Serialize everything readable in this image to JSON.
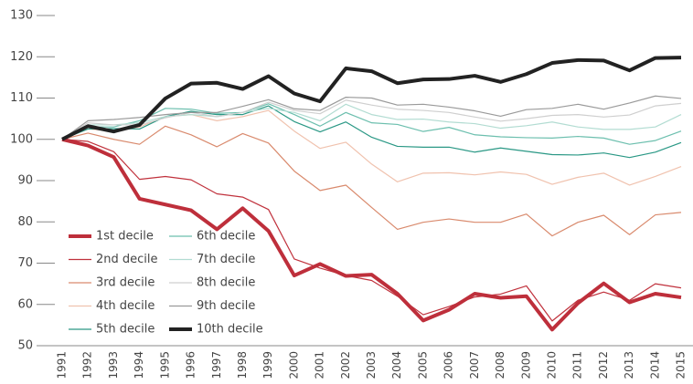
{
  "chart_data": {
    "type": "line",
    "categories": [
      "1991",
      "1992",
      "1993",
      "1994",
      "1995",
      "1996",
      "1997",
      "1998",
      "1999",
      "2000",
      "2001",
      "2002",
      "2003",
      "2004",
      "2005",
      "2006",
      "2007",
      "2008",
      "2009",
      "2010",
      "2011",
      "2012",
      "2013",
      "2014",
      "2015"
    ],
    "ylim": [
      50,
      130
    ],
    "yticks": [
      50,
      60,
      70,
      80,
      90,
      100,
      110,
      120,
      130
    ],
    "series": [
      {
        "name": "1st decile",
        "color": "#be2f3b",
        "linewidth": 4,
        "values": [
          100,
          98.5,
          95.7,
          85.6,
          84.2,
          82.8,
          78.2,
          83.3,
          77.8,
          67.0,
          69.8,
          66.9,
          67.2,
          62.6,
          56.1,
          58.7,
          62.6,
          61.6,
          62.0,
          53.9,
          60.3,
          65.1,
          60.5,
          62.6,
          61.7
        ]
      },
      {
        "name": "2nd decile",
        "color": "#c0313c",
        "linewidth": 1.2,
        "values": [
          100,
          99.5,
          97,
          90.3,
          91,
          90.2,
          86.8,
          86,
          83,
          71,
          68.8,
          67,
          65.8,
          62,
          57.5,
          59.5,
          61.8,
          62.5,
          64.5,
          56,
          61,
          63,
          61,
          65,
          64
        ]
      },
      {
        "name": "3rd decile",
        "color": "#d98a6d",
        "linewidth": 1.2,
        "values": [
          100,
          101.5,
          100,
          98.8,
          103.2,
          101.1,
          98.2,
          101.4,
          99.1,
          92.3,
          87.6,
          88.9,
          83.5,
          78.2,
          79.9,
          80.7,
          79.9,
          79.9,
          81.9,
          76.6,
          79.9,
          81.6,
          76.9,
          81.7,
          82.3
        ]
      },
      {
        "name": "4th decile",
        "color": "#f0c2ae",
        "linewidth": 1.2,
        "values": [
          100,
          102.5,
          102,
          103,
          105.5,
          106,
          104.5,
          105.5,
          107,
          102,
          97.8,
          99.3,
          94,
          89.7,
          91.8,
          91.9,
          91.4,
          92.1,
          91.5,
          89.1,
          90.8,
          91.8,
          88.9,
          91,
          93.4
        ]
      },
      {
        "name": "5th decile",
        "color": "#2a9885",
        "linewidth": 1.2,
        "values": [
          100,
          102.5,
          102.6,
          102.5,
          105.5,
          106.8,
          106,
          106,
          108.1,
          104.3,
          101.8,
          104.2,
          100.5,
          98.3,
          98.1,
          98.1,
          96.9,
          97.9,
          97.1,
          96.3,
          96.2,
          96.7,
          95.6,
          96.9,
          99.2
        ]
      },
      {
        "name": "6th decile",
        "color": "#6cbfae",
        "linewidth": 1.2,
        "values": [
          100,
          103,
          103,
          104.5,
          107.5,
          107.3,
          106.3,
          106.5,
          108.6,
          106,
          103.2,
          106.5,
          104,
          103.6,
          101.9,
          102.9,
          101.1,
          100.6,
          100.4,
          100.3,
          100.7,
          100.3,
          98.8,
          99.7,
          102
        ]
      },
      {
        "name": "7th decile",
        "color": "#b2dcd2",
        "linewidth": 1.2,
        "values": [
          100,
          103.5,
          103.5,
          104,
          105.5,
          106,
          105.5,
          106.5,
          107.5,
          106.5,
          104.5,
          108.5,
          106,
          104.8,
          104.9,
          104.2,
          103.8,
          102.7,
          103.3,
          104.2,
          103,
          102.4,
          102.4,
          103,
          106
        ]
      },
      {
        "name": "8th decile",
        "color": "#cfcfcf",
        "linewidth": 1.2,
        "values": [
          100,
          104,
          103.5,
          103.5,
          105.2,
          106.5,
          105.5,
          106.5,
          109,
          107,
          106.2,
          109.5,
          108.3,
          107.3,
          107,
          106.5,
          105.4,
          104.4,
          105,
          105.8,
          106,
          105.4,
          105.9,
          108.1,
          108.7
        ]
      },
      {
        "name": "9th decile",
        "color": "#9a9a9a",
        "linewidth": 1.2,
        "values": [
          100,
          104.5,
          104.8,
          105.3,
          106,
          106.5,
          106.5,
          108,
          109.6,
          107.4,
          107,
          110.2,
          110,
          108.3,
          108.5,
          107.8,
          106.9,
          105.6,
          107.2,
          107.5,
          108.5,
          107.3,
          108.8,
          110.5,
          109.9
        ]
      },
      {
        "name": "10th decile",
        "color": "#222222",
        "linewidth": 4,
        "values": [
          100,
          103.2,
          101.9,
          103.5,
          109.9,
          113.5,
          113.7,
          112.2,
          115.3,
          111.1,
          109.2,
          117.2,
          116.5,
          113.6,
          114.5,
          114.6,
          115.4,
          113.9,
          115.8,
          118.5,
          119.2,
          119.1,
          116.7,
          119.7,
          119.8
        ]
      }
    ]
  }
}
